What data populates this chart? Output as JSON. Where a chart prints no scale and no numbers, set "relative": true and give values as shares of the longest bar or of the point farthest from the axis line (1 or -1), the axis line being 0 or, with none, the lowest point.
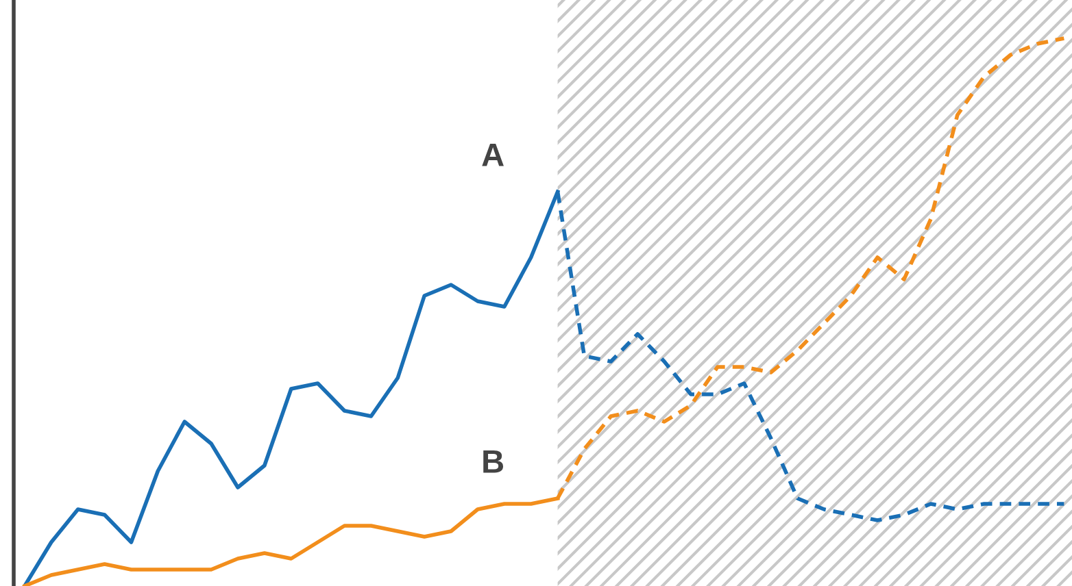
{
  "chart_data": {
    "type": "line",
    "relative": true,
    "categories": [
      null,
      null,
      null,
      null,
      null,
      null,
      null,
      null,
      null,
      null,
      null,
      null,
      null,
      null,
      null,
      null,
      null,
      null,
      null,
      null,
      null,
      null,
      null,
      null,
      null,
      null,
      null,
      null,
      null,
      null,
      null,
      null,
      null,
      null,
      null,
      null,
      null,
      null,
      null,
      null
    ],
    "series": [
      {
        "name": "A",
        "color": "#1a6fb5",
        "line_style": "solid",
        "values": [
          0,
          0.08,
          0.14,
          0.13,
          0.08,
          0.21,
          0.3,
          0.26,
          0.18,
          0.22,
          0.36,
          0.37,
          0.32,
          0.31,
          0.38,
          0.53,
          0.55,
          0.52,
          0.51,
          0.6,
          0.72,
          null,
          null,
          null,
          null,
          null,
          null,
          null,
          null,
          null,
          null,
          null,
          null,
          null,
          null,
          null,
          null,
          null,
          null,
          null
        ]
      },
      {
        "color": "#1a6fb5",
        "line_style": "dashed",
        "values": [
          null,
          null,
          null,
          null,
          null,
          null,
          null,
          null,
          null,
          null,
          null,
          null,
          null,
          null,
          null,
          null,
          null,
          null,
          null,
          null,
          0.72,
          0.42,
          0.41,
          0.46,
          0.41,
          0.35,
          0.35,
          0.37,
          0.27,
          0.16,
          0.14,
          0.13,
          0.12,
          0.13,
          0.15,
          0.14,
          0.15,
          0.15,
          0.15,
          0.15
        ]
      },
      {
        "name": "B",
        "color": "#f28e1c",
        "line_style": "solid",
        "values": [
          0,
          0.02,
          0.03,
          0.04,
          0.03,
          0.03,
          0.03,
          0.03,
          0.05,
          0.06,
          0.05,
          0.08,
          0.11,
          0.11,
          0.1,
          0.09,
          0.1,
          0.14,
          0.15,
          0.15,
          0.16,
          null,
          null,
          null,
          null,
          null,
          null,
          null,
          null,
          null,
          null,
          null,
          null,
          null,
          null,
          null,
          null,
          null,
          null,
          null
        ]
      },
      {
        "color": "#f28e1c",
        "line_style": "dashed",
        "values": [
          null,
          null,
          null,
          null,
          null,
          null,
          null,
          null,
          null,
          null,
          null,
          null,
          null,
          null,
          null,
          null,
          null,
          null,
          null,
          null,
          0.16,
          0.25,
          0.31,
          0.32,
          0.3,
          0.33,
          0.4,
          0.4,
          0.39,
          0.43,
          0.48,
          0.53,
          0.6,
          0.56,
          0.67,
          0.86,
          0.93,
          0.97,
          0.99,
          1
        ]
      }
    ],
    "legend": false
  }
}
